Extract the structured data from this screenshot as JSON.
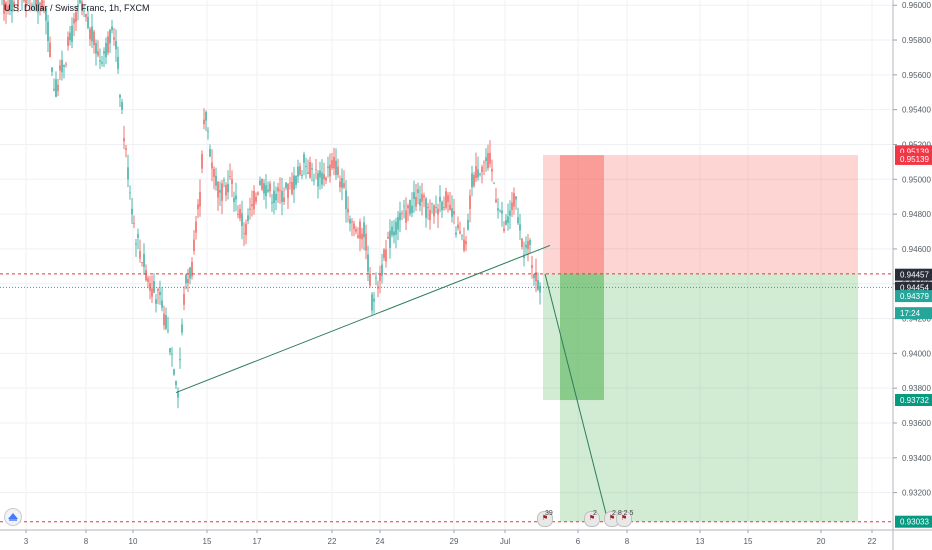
{
  "header": {
    "symbol_title": "U.S. Dollar / Swiss Franc, 1h, FXCM"
  },
  "colors": {
    "up": "#26a69a",
    "down": "#ef5350",
    "stop_zone": "rgba(244,67,54,0.22)",
    "stop_zone_strong": "rgba(244,67,54,0.38)",
    "target_zone": "rgba(76,175,80,0.25)",
    "target_zone_strong": "rgba(76,175,80,0.38)",
    "trendline": "#2e7d5b",
    "red_line": "#e53935",
    "current_price_line": "#26a69a"
  },
  "price_axis": {
    "ticks": [
      "0.96000",
      "0.95800",
      "0.95600",
      "0.95400",
      "0.95200",
      "0.95000",
      "0.94800",
      "0.94600",
      "0.94400",
      "0.94200",
      "0.94000",
      "0.93800",
      "0.93600",
      "0.93400",
      "0.93200"
    ]
  },
  "time_axis": {
    "ticks": [
      "3",
      "8",
      "10",
      "15",
      "17",
      "22",
      "24",
      "29",
      "Jul",
      "6",
      "8",
      "13",
      "15",
      "20",
      "22"
    ]
  },
  "price_badges": {
    "stop_top": "0.95139",
    "stop_bottom": "0.95139",
    "entry": "0.94457",
    "bid": "0.94454",
    "last": "0.94379",
    "countdown": "17:24",
    "target_1": "0.93732",
    "target_2": "0.93033"
  },
  "events": {
    "count_1": "39",
    "count_2": "2",
    "count_3": "2 8 2 5"
  },
  "icons": {
    "logo": "tradingview-cloud-icon",
    "event": "us-flag-event-icon"
  },
  "chart_data": {
    "type": "candlestick",
    "title": "U.S. Dollar / Swiss Franc, 1h, FXCM",
    "x_ticks": [
      "3",
      "8",
      "10",
      "15",
      "17",
      "22",
      "24",
      "29",
      "Jul",
      "6",
      "8",
      "13",
      "15",
      "20",
      "22"
    ],
    "ylim": [
      0.9306,
      0.9603
    ],
    "trendline": {
      "from": 0.93775,
      "to": 0.9462
    },
    "down_projection": {
      "from": 0.94457,
      "to": 0.93033
    },
    "horizontal_lines": [
      0.94457,
      0.93033
    ],
    "current_price": 0.94379,
    "risk_reward": {
      "stop": 0.95139,
      "entry": 0.94457,
      "target_1": 0.93732,
      "target_2": 0.93033
    },
    "grid": true
  }
}
